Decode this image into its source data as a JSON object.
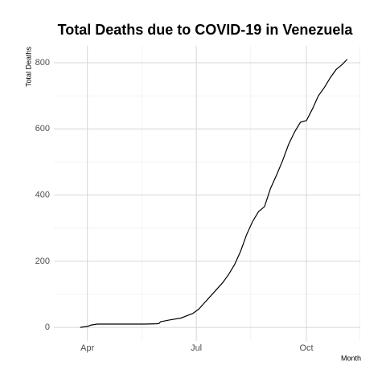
{
  "chart_data": {
    "type": "line",
    "title": "Total Deaths due to COVID-19 in Venezuela",
    "x_label": "Month",
    "y_label": "Total Deaths",
    "x": [
      86,
      92,
      95,
      100,
      110,
      120,
      130,
      140,
      150,
      152,
      153,
      160,
      165,
      170,
      175,
      180,
      185,
      190,
      195,
      200,
      205,
      210,
      215,
      220,
      225,
      230,
      235,
      240,
      245,
      250,
      255,
      260,
      265,
      270,
      275,
      280,
      285,
      290,
      295,
      300,
      305,
      309
    ],
    "series": [
      {
        "name": "Total Deaths",
        "color": "#000000",
        "values": [
          0,
          3,
          7,
          10,
          10,
          10,
          10,
          10,
          11,
          12,
          17,
          22,
          25,
          28,
          35,
          42,
          55,
          75,
          95,
          115,
          135,
          160,
          190,
          230,
          280,
          320,
          350,
          365,
          420,
          460,
          503,
          552,
          590,
          620,
          625,
          660,
          700,
          725,
          755,
          780,
          795,
          810
        ]
      }
    ],
    "xlim": [
      64,
      320
    ],
    "ylim": [
      -41,
      851
    ],
    "xticks": [
      {
        "value": 92,
        "label": "Apr"
      },
      {
        "value": 183,
        "label": "Jul"
      },
      {
        "value": 275,
        "label": "Oct"
      }
    ],
    "yticks": [
      0,
      200,
      400,
      600,
      800
    ],
    "grid": true
  }
}
